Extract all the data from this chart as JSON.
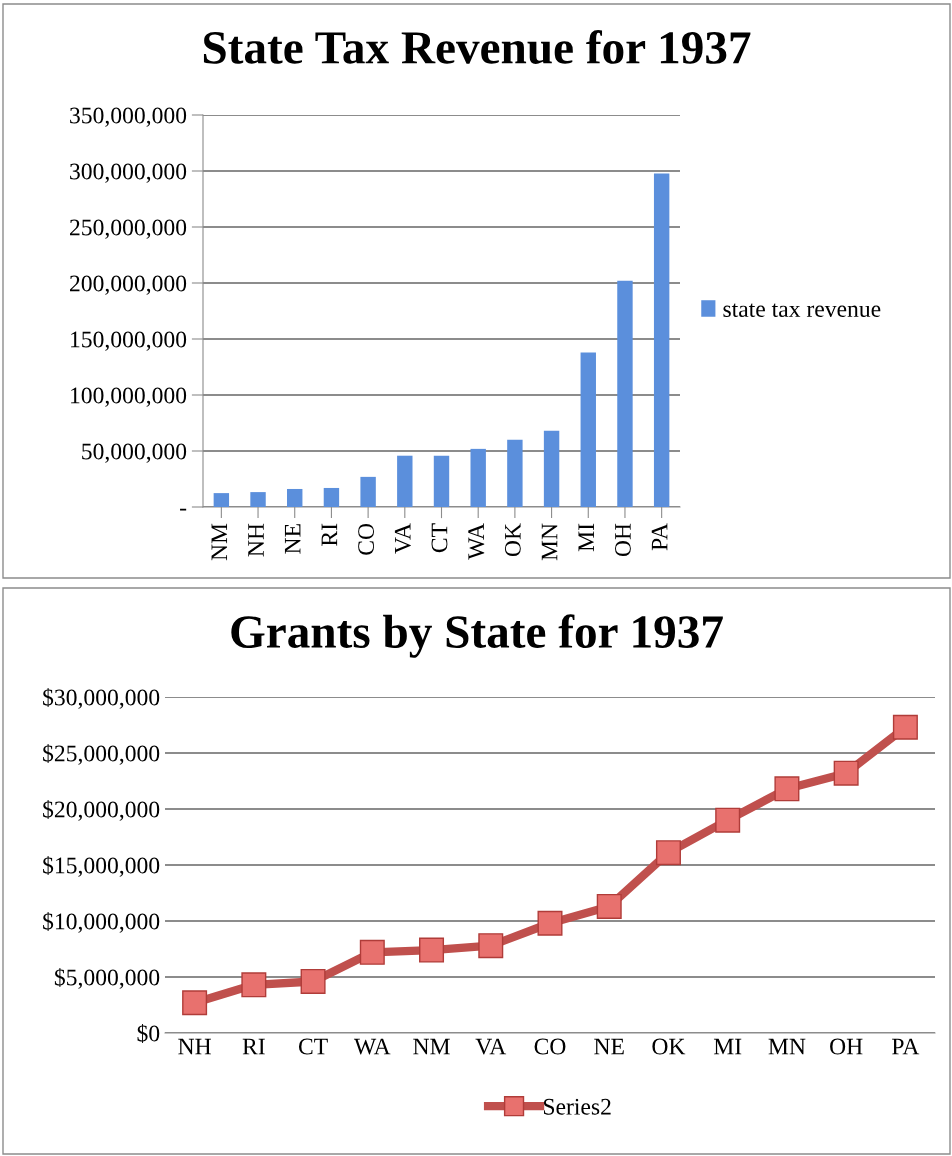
{
  "chart_data": [
    {
      "type": "bar",
      "title": "State Tax Revenue for 1937",
      "categories": [
        "NM",
        "NH",
        "NE",
        "RI",
        "CO",
        "VA",
        "CT",
        "WA",
        "OK",
        "MN",
        "MI",
        "OH",
        "PA"
      ],
      "series": [
        {
          "name": "state tax revenue",
          "color": "#5b8fdc",
          "values": [
            12400000,
            13300000,
            16100000,
            17000000,
            26900000,
            45800000,
            45800000,
            51900000,
            60000000,
            68000000,
            137900000,
            201900000,
            297800000
          ]
        }
      ],
      "ylim": [
        0,
        350000000
      ],
      "yticks": [
        {
          "value": 0,
          "label": "-"
        },
        {
          "value": 50000000,
          "label": "50,000,000"
        },
        {
          "value": 100000000,
          "label": "100,000,000"
        },
        {
          "value": 150000000,
          "label": "150,000,000"
        },
        {
          "value": 200000000,
          "label": "200,000,000"
        },
        {
          "value": 250000000,
          "label": "250,000,000"
        },
        {
          "value": 300000000,
          "label": "300,000,000"
        },
        {
          "value": 350000000,
          "label": "350,000,000"
        }
      ],
      "grid": "y",
      "legend": "right"
    },
    {
      "type": "line",
      "title": "Grants by State for 1937",
      "categories": [
        "NH",
        "RI",
        "CT",
        "WA",
        "NM",
        "VA",
        "CO",
        "NE",
        "OK",
        "MI",
        "MN",
        "OH",
        "PA"
      ],
      "series": [
        {
          "name": "Series2",
          "color": "#c0504d",
          "values": [
            2700000,
            4300000,
            4600000,
            7200000,
            7400000,
            7800000,
            9800000,
            11300000,
            16100000,
            19000000,
            21800000,
            23200000,
            27300000
          ]
        }
      ],
      "ylim": [
        0,
        30000000
      ],
      "yticks": [
        {
          "value": 0,
          "label": "$0"
        },
        {
          "value": 5000000,
          "label": "$5,000,000"
        },
        {
          "value": 10000000,
          "label": "$10,000,000"
        },
        {
          "value": 15000000,
          "label": "$15,000,000"
        },
        {
          "value": 20000000,
          "label": "$20,000,000"
        },
        {
          "value": 25000000,
          "label": "$25,000,000"
        },
        {
          "value": 30000000,
          "label": "$30,000,000"
        }
      ],
      "grid": "y",
      "legend": "bottom",
      "marker": "square",
      "line_style": "solid"
    }
  ]
}
